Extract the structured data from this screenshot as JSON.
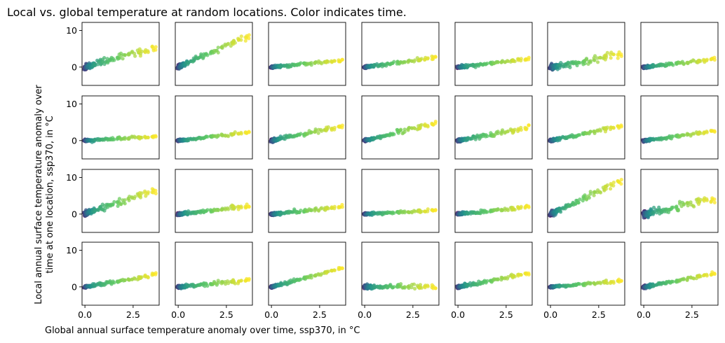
{
  "chart_data": {
    "type": "scatter",
    "title": "Local vs. global temperature at random locations. Color indicates time.",
    "xlabel": "Global annual surface temperature anomaly over time, ssp370, in °C",
    "ylabel": "Local annual surface temperature anomaly over\ntime at one location, ssp370, in °C",
    "grid": false,
    "xlim": [
      -0.15,
      3.85
    ],
    "ylim": [
      -5,
      12.2
    ],
    "xticks": [
      0.0,
      2.5
    ],
    "xtick_labels": [
      "0.0",
      "2.5"
    ],
    "yticks": [
      0,
      10
    ],
    "ytick_labels": [
      "0",
      "10"
    ],
    "rows": 4,
    "cols": 7,
    "colormap": [
      "#440154",
      "#3b528b",
      "#21918c",
      "#5ec962",
      "#fde725"
    ],
    "panels": [
      {
        "slope": 1.5,
        "curv": 0.0,
        "noise": 0.9
      },
      {
        "slope": 2.4,
        "curv": 0.0,
        "noise": 0.7
      },
      {
        "slope": 0.5,
        "curv": 0.0,
        "noise": 0.4
      },
      {
        "slope": 0.7,
        "curv": 0.0,
        "noise": 0.4
      },
      {
        "slope": 0.6,
        "curv": 0.0,
        "noise": 0.4
      },
      {
        "slope": 0.8,
        "curv": 0.05,
        "noise": 0.8
      },
      {
        "slope": 0.6,
        "curv": 0.0,
        "noise": 0.4
      },
      {
        "slope": 0.3,
        "curv": 0.0,
        "noise": 0.35
      },
      {
        "slope": 0.6,
        "curv": 0.0,
        "noise": 0.35
      },
      {
        "slope": 1.1,
        "curv": 0.0,
        "noise": 0.5
      },
      {
        "slope": 1.3,
        "curv": 0.0,
        "noise": 0.5
      },
      {
        "slope": 1.0,
        "curv": 0.0,
        "noise": 0.5
      },
      {
        "slope": 1.1,
        "curv": 0.0,
        "noise": 0.4
      },
      {
        "slope": 0.7,
        "curv": 0.0,
        "noise": 0.35
      },
      {
        "slope": 1.8,
        "curv": 0.0,
        "noise": 0.9
      },
      {
        "slope": 0.6,
        "curv": 0.0,
        "noise": 0.5
      },
      {
        "slope": 0.55,
        "curv": 0.0,
        "noise": 0.45
      },
      {
        "slope": 0.3,
        "curv": 0.0,
        "noise": 0.35
      },
      {
        "slope": 0.55,
        "curv": 0.0,
        "noise": 0.4
      },
      {
        "slope": 2.5,
        "curv": 0.0,
        "noise": 0.8
      },
      {
        "slope": 1.1,
        "curv": 0.0,
        "noise": 1.1
      },
      {
        "slope": 0.9,
        "curv": 0.0,
        "noise": 0.4
      },
      {
        "slope": 0.5,
        "curv": 0.0,
        "noise": 0.45
      },
      {
        "slope": 1.4,
        "curv": 0.0,
        "noise": 0.35
      },
      {
        "slope": 0.0,
        "curv": 0.0,
        "noise": 0.6
      },
      {
        "slope": 1.0,
        "curv": 0.0,
        "noise": 0.5
      },
      {
        "slope": 0.45,
        "curv": 0.0,
        "noise": 0.35
      },
      {
        "slope": 1.0,
        "curv": 0.0,
        "noise": 0.45
      }
    ]
  }
}
